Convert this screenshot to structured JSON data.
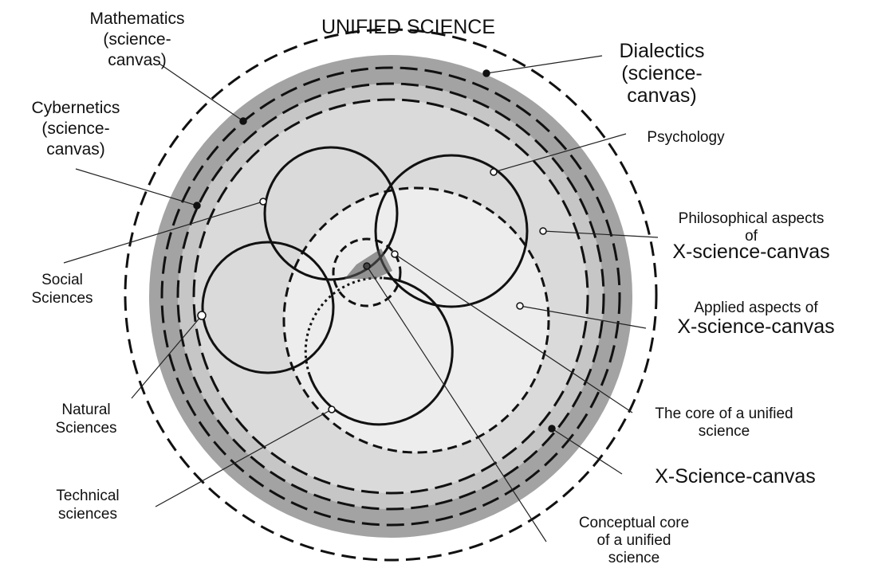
{
  "title": "UNIFIED SCIENCE",
  "labels": {
    "mathematics": [
      "Mathematics",
      "(science-",
      "canvas)"
    ],
    "cybernetics": [
      "Cybernetics",
      "(science-",
      "canvas)"
    ],
    "dialectics": [
      "Dialectics",
      "(science-",
      "canvas)"
    ],
    "psychology": [
      "Psychology"
    ],
    "philosophical": [
      "Philosophical aspects",
      "of",
      "X-science-canvas"
    ],
    "applied": [
      "Applied  aspects of",
      "X-science-canvas"
    ],
    "social": [
      "Social",
      "Sciences"
    ],
    "natural": [
      "Natural",
      "Sciences"
    ],
    "technical": [
      "Technical",
      "sciences"
    ],
    "core": [
      "The core of a unified",
      "science"
    ],
    "xscience": [
      "X-Science-canvas"
    ],
    "conceptual": [
      "Conceptual core",
      "of a unified",
      "science"
    ]
  }
}
